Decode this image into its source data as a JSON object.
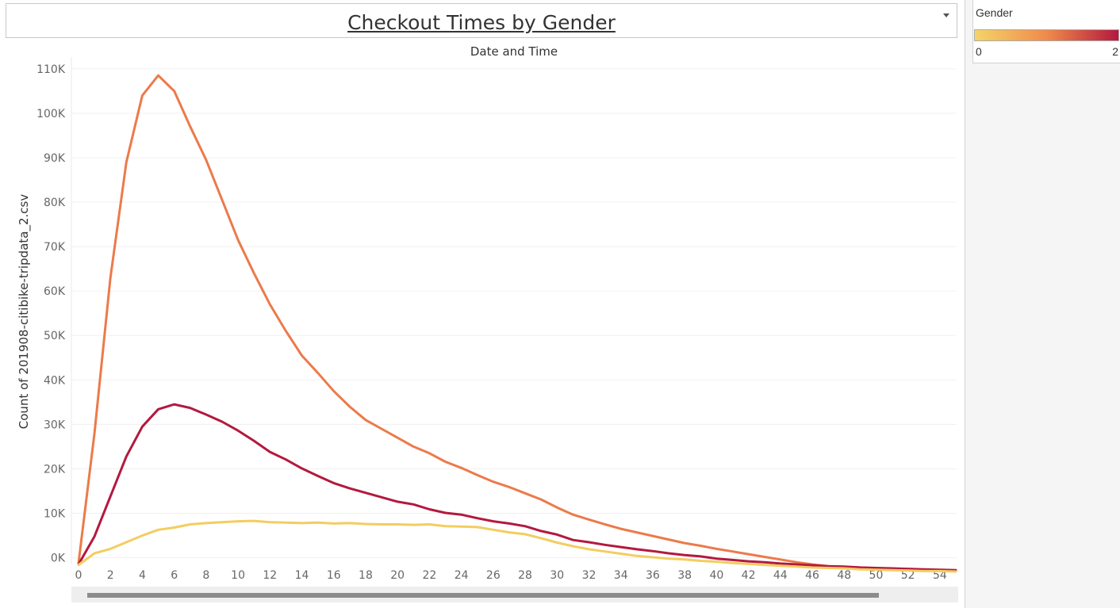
{
  "title": "Checkout Times by Gender",
  "column_header": "Date and Time",
  "legend": {
    "title": "Gender",
    "min_label": "0",
    "max_label": "2",
    "ramp_colors": [
      "#f5d468",
      "#f08a4b",
      "#b3193f"
    ]
  },
  "chart_data": {
    "type": "line",
    "title": "Checkout Times by Gender",
    "xlabel": "Date and Time",
    "ylabel": "Count of 201908-citibike-tripdata_2.csv",
    "xlim": [
      0,
      55
    ],
    "ylim": [
      -1500,
      113000
    ],
    "x_ticks": [
      0,
      2,
      4,
      6,
      8,
      10,
      12,
      14,
      16,
      18,
      20,
      22,
      24,
      26,
      28,
      30,
      32,
      34,
      36,
      38,
      40,
      42,
      44,
      46,
      48,
      50,
      52,
      54
    ],
    "y_ticks": [
      {
        "value": 0,
        "label": "0K"
      },
      {
        "value": 10000,
        "label": "10K"
      },
      {
        "value": 20000,
        "label": "20K"
      },
      {
        "value": 30000,
        "label": "30K"
      },
      {
        "value": 40000,
        "label": "40K"
      },
      {
        "value": 50000,
        "label": "50K"
      },
      {
        "value": 60000,
        "label": "60K"
      },
      {
        "value": 70000,
        "label": "70K"
      },
      {
        "value": 80000,
        "label": "80K"
      },
      {
        "value": 90000,
        "label": "90K"
      },
      {
        "value": 100000,
        "label": "100K"
      },
      {
        "value": 110000,
        "label": "110K"
      }
    ],
    "grid": "horizontal",
    "x": [
      0,
      1,
      2,
      3,
      4,
      5,
      6,
      7,
      8,
      9,
      10,
      11,
      12,
      13,
      14,
      15,
      16,
      17,
      18,
      19,
      20,
      21,
      22,
      23,
      24,
      25,
      26,
      27,
      28,
      29,
      30,
      31,
      32,
      33,
      34,
      35,
      36,
      37,
      38,
      39,
      40,
      41,
      42,
      43,
      44,
      45,
      46,
      47,
      48,
      49,
      50,
      51,
      52,
      53,
      54,
      55
    ],
    "series": [
      {
        "key": "gender-1",
        "color": "#ec7a4a",
        "values": [
          -1200,
          28000,
          63000,
          89000,
          104000,
          108500,
          105000,
          97000,
          89500,
          80500,
          71500,
          64000,
          57000,
          51000,
          45500,
          41600,
          37500,
          34000,
          31000,
          29000,
          27000,
          25000,
          23500,
          21600,
          20200,
          18600,
          17100,
          15900,
          14500,
          13100,
          11300,
          9700,
          8600,
          7500,
          6500,
          5700,
          4900,
          4100,
          3300,
          2700,
          2000,
          1400,
          800,
          200,
          -400,
          -1000,
          -1500,
          -1900,
          -2100,
          -2200,
          -2400,
          -2600,
          -2700,
          -2800,
          -2800,
          -2900
        ]
      },
      {
        "key": "gender-2",
        "color": "#b3193f",
        "values": [
          -1500,
          4800,
          13800,
          22800,
          29500,
          33400,
          34500,
          33700,
          32200,
          30600,
          28600,
          26300,
          23800,
          22100,
          20100,
          18400,
          16800,
          15600,
          14600,
          13600,
          12600,
          12000,
          10900,
          10100,
          9700,
          8900,
          8200,
          7700,
          7100,
          6000,
          5200,
          4000,
          3500,
          2900,
          2400,
          1900,
          1500,
          1000,
          600,
          300,
          -200,
          -500,
          -800,
          -1000,
          -1300,
          -1500,
          -1700,
          -1900,
          -2000,
          -2200,
          -2300,
          -2400,
          -2500,
          -2600,
          -2700,
          -2800
        ]
      },
      {
        "key": "gender-0",
        "color": "#f3cd60",
        "values": [
          -1600,
          1000,
          2000,
          3500,
          5000,
          6300,
          6800,
          7500,
          7800,
          8000,
          8200,
          8300,
          8000,
          7900,
          7800,
          7900,
          7700,
          7800,
          7600,
          7500,
          7500,
          7400,
          7500,
          7100,
          7000,
          6900,
          6300,
          5700,
          5300,
          4400,
          3400,
          2600,
          1900,
          1400,
          900,
          400,
          100,
          -200,
          -400,
          -700,
          -900,
          -1200,
          -1400,
          -1600,
          -1800,
          -2000,
          -2200,
          -2300,
          -2400,
          -2600,
          -2700,
          -2800,
          -2900,
          -3000,
          -3000,
          -3100
        ]
      }
    ]
  }
}
